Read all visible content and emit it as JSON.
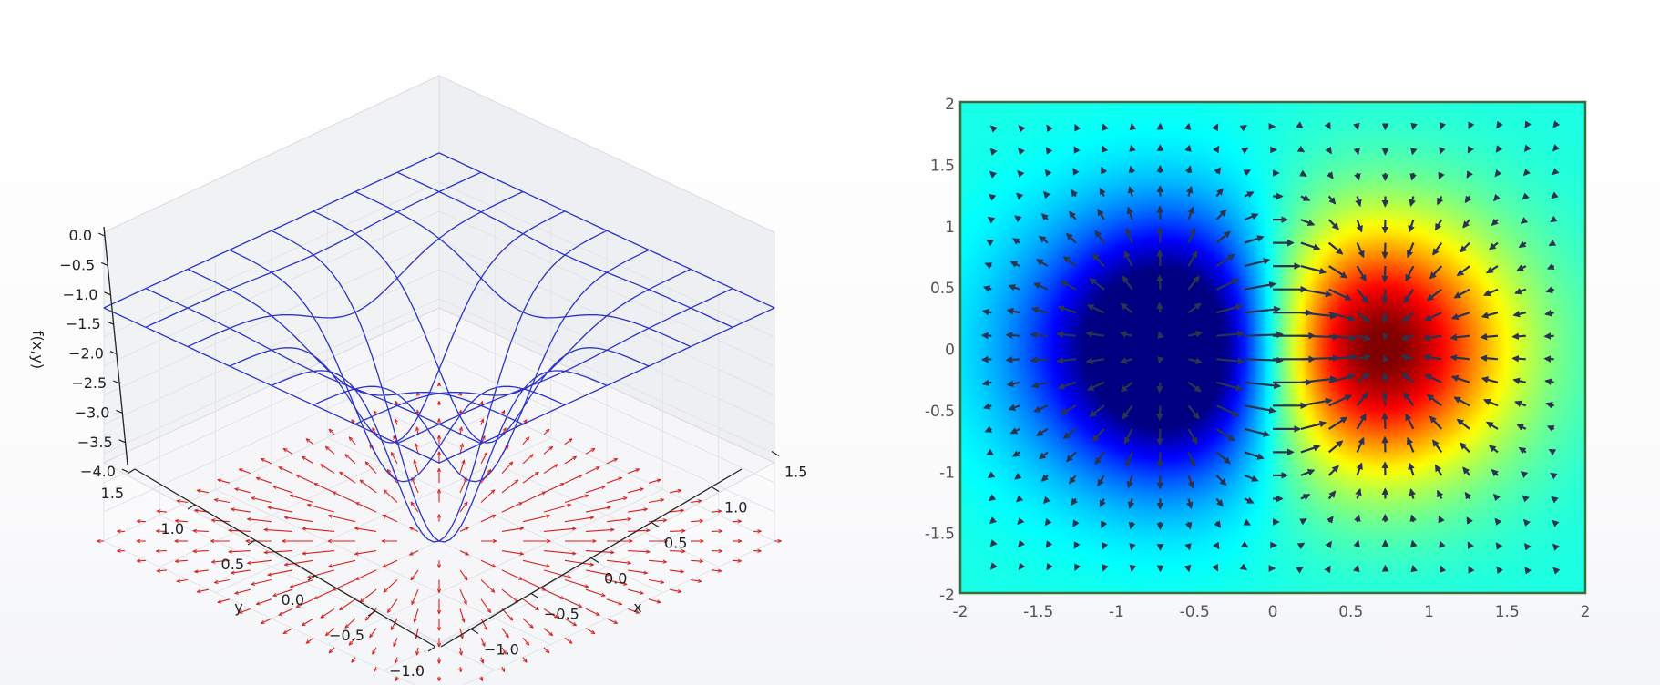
{
  "chart_data": [
    {
      "type": "surface3d",
      "function": "f(x,y) = -4*(exp(-(x-0.5)^2-y^2)+exp(-(x+0.5)^2-y^2)) + ... (wireframe, double-well)",
      "wire_color": "#2b33c9",
      "quiver_color": "#d62020",
      "xlabel": "x",
      "ylabel": "y",
      "zlabel": "f(x,y)",
      "xlim": [
        -1.5,
        1.5
      ],
      "ylim": [
        -1.5,
        1.5
      ],
      "zlim": [
        -4.0,
        0.0
      ],
      "xticks": [
        "−1.0",
        "−0.5",
        "0.0",
        "0.5",
        "1.0",
        "1.5"
      ],
      "yticks": [
        "−1.0",
        "−0.5",
        "0.0",
        "0.5",
        "1.0",
        "1.5"
      ],
      "zticks": [
        "0.0",
        "−0.5",
        "−1.0",
        "−1.5",
        "−2.0",
        "−2.5",
        "−3.0",
        "−3.5",
        "−4.0"
      ],
      "grid": true
    },
    {
      "type": "heatmap",
      "colormap": "jet",
      "field": "x*exp(-x^2-y^2) with gradient quiver overlay",
      "quiver_color": "#2a3350",
      "xlim": [
        -2,
        2
      ],
      "ylim": [
        -2,
        2
      ],
      "xticks": [
        "-2",
        "-1.5",
        "-1",
        "-0.5",
        "0",
        "0.5",
        "1",
        "1.5",
        "2"
      ],
      "yticks": [
        "2",
        "1.5",
        "1",
        "0.5",
        "0",
        "-0.5",
        "-1",
        "-1.5",
        "-2"
      ],
      "extrema": [
        {
          "kind": "min",
          "x": -0.71,
          "y": 0
        },
        {
          "kind": "max",
          "x": 0.71,
          "y": 0
        }
      ]
    }
  ]
}
